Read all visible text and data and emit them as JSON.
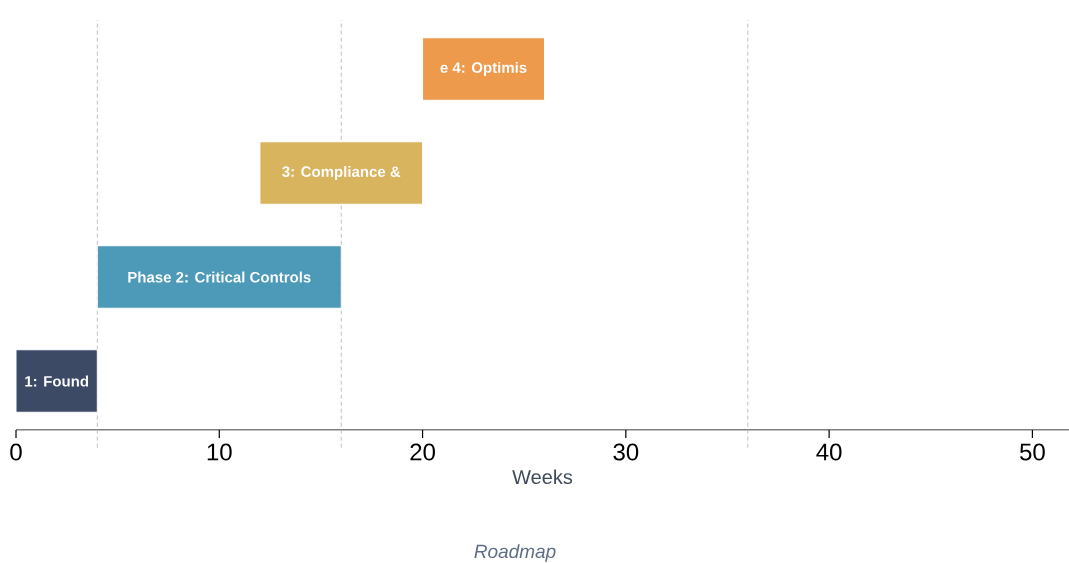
{
  "chart_data": {
    "type": "bar",
    "orientation": "horizontal",
    "categories": [
      "e 4: Optimis",
      "3: Compliance &",
      "Phase 2: Critical Controls",
      "1: Found"
    ],
    "base": [
      20,
      12,
      4,
      0
    ],
    "values": [
      6,
      8,
      12,
      4
    ],
    "colors": [
      "#ee9a4d",
      "#d9b45e",
      "#4c9ab8",
      "#3d4a66"
    ],
    "xlim": [
      0,
      51.8
    ],
    "xticks": [
      0,
      10,
      20,
      30,
      40,
      50
    ],
    "xlabel": "Weeks",
    "ref_lines": [
      {
        "axis": "x",
        "value": 4,
        "color": "#b8b8b8",
        "line_style": "dashed"
      },
      {
        "axis": "x",
        "value": 16,
        "color": "#b8b8b8",
        "line_style": "dashed"
      },
      {
        "axis": "x",
        "value": 36,
        "color": "#b8b8b8",
        "line_style": "dashed"
      }
    ],
    "annotations": [
      "Roadmap"
    ],
    "tick_labels": "x"
  }
}
